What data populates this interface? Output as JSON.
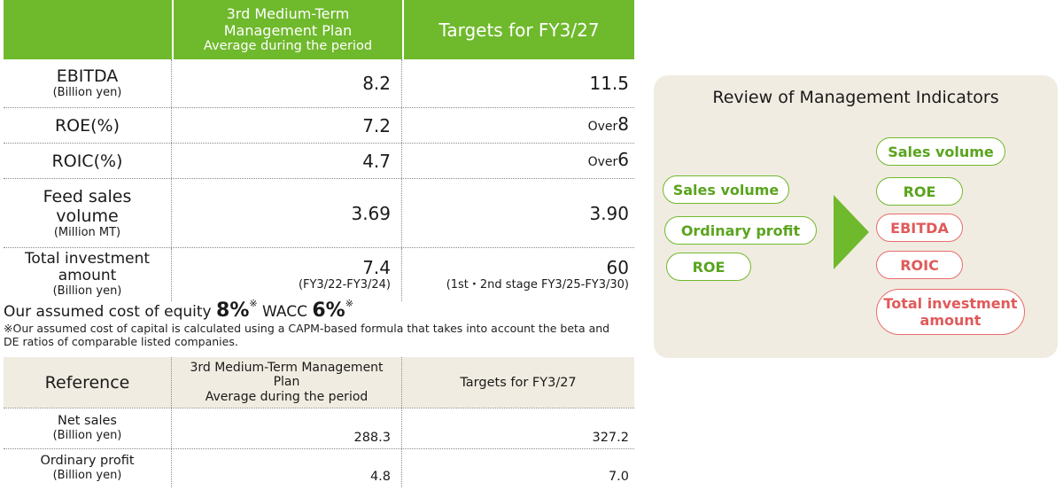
{
  "main_table": {
    "col1_header_line1": "3rd Medium-Term",
    "col1_header_line2": "Management Plan",
    "col1_header_line3": "Average during the period",
    "col2_header": "Targets for FY3/27",
    "rows": [
      {
        "label": "EBITDA",
        "unit": "(Billion yen)",
        "plan": "8.2",
        "target": "11.5"
      },
      {
        "label": "ROE(%)",
        "plan": "7.2",
        "target_prefix": "Over",
        "target": "8"
      },
      {
        "label": "ROIC(%)",
        "plan": "4.7",
        "target_prefix": "Over",
        "target": "6"
      },
      {
        "label_line1": "Feed sales",
        "label_line2": "volume",
        "unit": "(Million MT)",
        "plan": "3.69",
        "target": "3.90"
      },
      {
        "label_line1": "Total investment",
        "label_line2": "amount",
        "unit": "(Billion yen)",
        "plan": "7.4",
        "plan_sub": "(FY3/22-FY3/24)",
        "target": "60",
        "target_sub": "(1st・2nd stage FY3/25-FY3/30)"
      }
    ]
  },
  "cost_of_equity": {
    "prefix": "Our assumed cost of equity ",
    "coe_value": "8%",
    "mark": "※",
    "wacc_label": " WACC ",
    "wacc_value": "6%"
  },
  "note": "※Our assumed cost of capital is calculated using a CAPM-based formula that takes into account the beta and DE ratios of comparable listed companies.",
  "reference_table": {
    "label": "Reference",
    "col1_header_line1": "3rd Medium-Term Management",
    "col1_header_line2": "Plan",
    "col1_header_line3": "Average during the period",
    "col2_header": "Targets for FY3/27",
    "rows": [
      {
        "label": "Net sales",
        "unit": "(Billion yen)",
        "plan": "288.3",
        "target": "327.2"
      },
      {
        "label": "Ordinary profit",
        "unit": "(Billion yen)",
        "plan": "4.8",
        "target": "7.0"
      }
    ]
  },
  "review": {
    "title": "Review of Management Indicators",
    "before": [
      "Sales volume",
      "Ordinary profit",
      "ROE"
    ],
    "after_green": [
      "Sales volume",
      "ROE"
    ],
    "after_red": [
      "EBITDA",
      "ROIC"
    ],
    "after_red_multi_line1": "Total investment",
    "after_red_multi_line2": "amount",
    "colors": {
      "green": "#6fb92c",
      "red": "#e05a5a",
      "panel": "#f1ece1"
    }
  }
}
